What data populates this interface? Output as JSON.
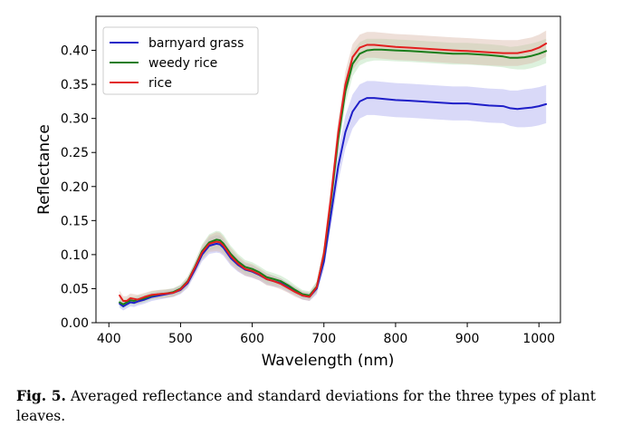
{
  "chart_data": {
    "type": "line",
    "title": "",
    "xlabel": "Wavelength (nm)",
    "ylabel": "Reflectance",
    "xlim": [
      382,
      1030
    ],
    "ylim": [
      0.0,
      0.45
    ],
    "x_ticks": [
      400,
      500,
      600,
      700,
      800,
      900,
      1000
    ],
    "x_tick_labels": [
      "400",
      "500",
      "600",
      "700",
      "800",
      "900",
      "1000"
    ],
    "y_ticks": [
      0.0,
      0.05,
      0.1,
      0.15,
      0.2,
      0.25,
      0.3,
      0.35,
      0.4
    ],
    "y_tick_labels": [
      "0.00",
      "0.05",
      "0.10",
      "0.15",
      "0.20",
      "0.25",
      "0.30",
      "0.35",
      "0.40"
    ],
    "legend_position": "top-left",
    "x": [
      415,
      420,
      425,
      430,
      435,
      440,
      450,
      460,
      470,
      480,
      490,
      500,
      510,
      520,
      530,
      540,
      550,
      555,
      560,
      570,
      580,
      590,
      600,
      610,
      620,
      630,
      640,
      650,
      660,
      670,
      680,
      690,
      700,
      710,
      720,
      730,
      740,
      750,
      760,
      770,
      780,
      800,
      820,
      850,
      880,
      900,
      930,
      950,
      960,
      970,
      980,
      990,
      1000,
      1010
    ],
    "series": [
      {
        "name": "barnyard grass",
        "color": "#1f1fc8",
        "band_color": "#aaaaf0",
        "values": [
          0.028,
          0.024,
          0.027,
          0.03,
          0.029,
          0.031,
          0.034,
          0.038,
          0.04,
          0.042,
          0.044,
          0.048,
          0.058,
          0.078,
          0.1,
          0.113,
          0.116,
          0.115,
          0.11,
          0.095,
          0.085,
          0.078,
          0.075,
          0.07,
          0.064,
          0.061,
          0.058,
          0.052,
          0.046,
          0.04,
          0.038,
          0.05,
          0.09,
          0.16,
          0.23,
          0.28,
          0.31,
          0.325,
          0.33,
          0.33,
          0.329,
          0.327,
          0.326,
          0.324,
          0.322,
          0.322,
          0.319,
          0.318,
          0.315,
          0.314,
          0.315,
          0.316,
          0.318,
          0.321
        ],
        "std": [
          0.006,
          0.006,
          0.006,
          0.006,
          0.006,
          0.006,
          0.006,
          0.006,
          0.006,
          0.006,
          0.006,
          0.006,
          0.007,
          0.008,
          0.01,
          0.012,
          0.013,
          0.013,
          0.012,
          0.011,
          0.01,
          0.009,
          0.009,
          0.008,
          0.008,
          0.008,
          0.007,
          0.007,
          0.006,
          0.006,
          0.006,
          0.008,
          0.012,
          0.018,
          0.022,
          0.024,
          0.025,
          0.025,
          0.025,
          0.025,
          0.025,
          0.025,
          0.025,
          0.025,
          0.025,
          0.025,
          0.025,
          0.025,
          0.026,
          0.027,
          0.028,
          0.028,
          0.028,
          0.028
        ]
      },
      {
        "name": "weedy rice",
        "color": "#1a7d1a",
        "band_color": "#b4e0b4",
        "values": [
          0.03,
          0.027,
          0.03,
          0.033,
          0.032,
          0.034,
          0.036,
          0.04,
          0.042,
          0.043,
          0.045,
          0.05,
          0.061,
          0.082,
          0.105,
          0.118,
          0.122,
          0.121,
          0.116,
          0.101,
          0.09,
          0.082,
          0.079,
          0.074,
          0.067,
          0.064,
          0.061,
          0.055,
          0.048,
          0.042,
          0.04,
          0.053,
          0.1,
          0.18,
          0.27,
          0.34,
          0.38,
          0.395,
          0.4,
          0.401,
          0.401,
          0.4,
          0.399,
          0.397,
          0.395,
          0.395,
          0.393,
          0.391,
          0.389,
          0.389,
          0.39,
          0.392,
          0.395,
          0.399
        ],
        "std": [
          0.006,
          0.006,
          0.006,
          0.006,
          0.006,
          0.006,
          0.006,
          0.006,
          0.006,
          0.006,
          0.006,
          0.006,
          0.007,
          0.008,
          0.01,
          0.012,
          0.013,
          0.013,
          0.013,
          0.012,
          0.011,
          0.01,
          0.01,
          0.009,
          0.009,
          0.009,
          0.008,
          0.008,
          0.007,
          0.006,
          0.006,
          0.008,
          0.012,
          0.016,
          0.018,
          0.018,
          0.018,
          0.017,
          0.017,
          0.016,
          0.016,
          0.016,
          0.016,
          0.016,
          0.016,
          0.016,
          0.016,
          0.016,
          0.016,
          0.017,
          0.018,
          0.018,
          0.018,
          0.018
        ]
      },
      {
        "name": "rice",
        "color": "#e21f1f",
        "band_color": "#d9b8a8",
        "values": [
          0.04,
          0.032,
          0.032,
          0.036,
          0.035,
          0.034,
          0.038,
          0.041,
          0.042,
          0.043,
          0.044,
          0.049,
          0.06,
          0.081,
          0.103,
          0.116,
          0.119,
          0.118,
          0.113,
          0.098,
          0.087,
          0.079,
          0.076,
          0.071,
          0.064,
          0.061,
          0.057,
          0.051,
          0.045,
          0.04,
          0.038,
          0.052,
          0.102,
          0.186,
          0.28,
          0.35,
          0.39,
          0.404,
          0.408,
          0.408,
          0.407,
          0.405,
          0.404,
          0.402,
          0.4,
          0.399,
          0.397,
          0.396,
          0.396,
          0.396,
          0.398,
          0.4,
          0.404,
          0.41
        ],
        "std": [
          0.007,
          0.007,
          0.007,
          0.007,
          0.007,
          0.007,
          0.006,
          0.006,
          0.006,
          0.006,
          0.006,
          0.006,
          0.007,
          0.008,
          0.01,
          0.012,
          0.014,
          0.014,
          0.013,
          0.012,
          0.011,
          0.01,
          0.01,
          0.009,
          0.009,
          0.008,
          0.008,
          0.007,
          0.007,
          0.006,
          0.006,
          0.008,
          0.012,
          0.016,
          0.018,
          0.019,
          0.019,
          0.019,
          0.019,
          0.019,
          0.019,
          0.019,
          0.019,
          0.019,
          0.019,
          0.019,
          0.019,
          0.019,
          0.019,
          0.019,
          0.019,
          0.019,
          0.019,
          0.019
        ]
      }
    ]
  },
  "caption": {
    "label": "Fig. 5.",
    "text": " Averaged reflectance and standard deviations for the three types of plant leaves."
  }
}
